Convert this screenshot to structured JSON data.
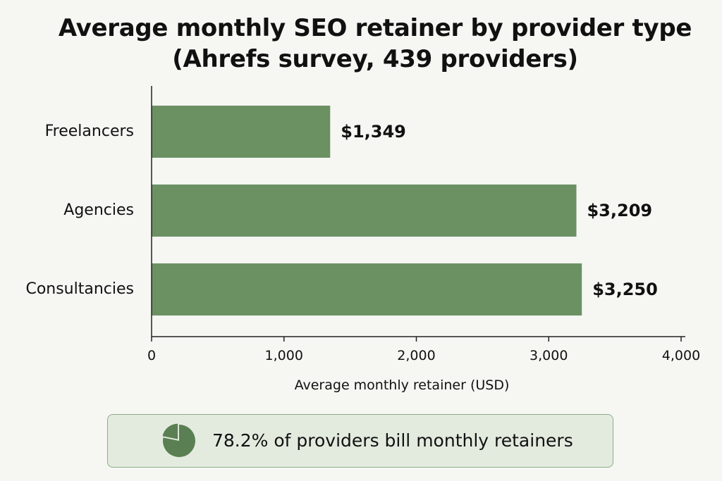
{
  "chart_data": {
    "type": "bar",
    "orientation": "horizontal",
    "title_lines": [
      "Average monthly SEO retainer by provider type",
      "(Ahrefs survey, 439 providers)"
    ],
    "categories": [
      "Freelancers",
      "Agencies",
      "Consultancies"
    ],
    "values": [
      1349,
      3209,
      3250
    ],
    "value_labels": [
      "$1,349",
      "$3,209",
      "$3,250"
    ],
    "xlabel": "Average monthly retainer (USD)",
    "ylabel": "",
    "xlim": [
      0,
      4000
    ],
    "xticks": [
      0,
      1000,
      2000,
      3000,
      4000
    ],
    "xtick_labels": [
      "0",
      "1,000",
      "2,000",
      "3,000",
      "4,000"
    ],
    "grid": false,
    "bar_color": "#6b9163"
  },
  "callout": {
    "text": "78.2% of providers bill monthly retainers",
    "percent": 78.2,
    "icon": "pie-chart-icon",
    "icon_color": "#5a7f52"
  }
}
